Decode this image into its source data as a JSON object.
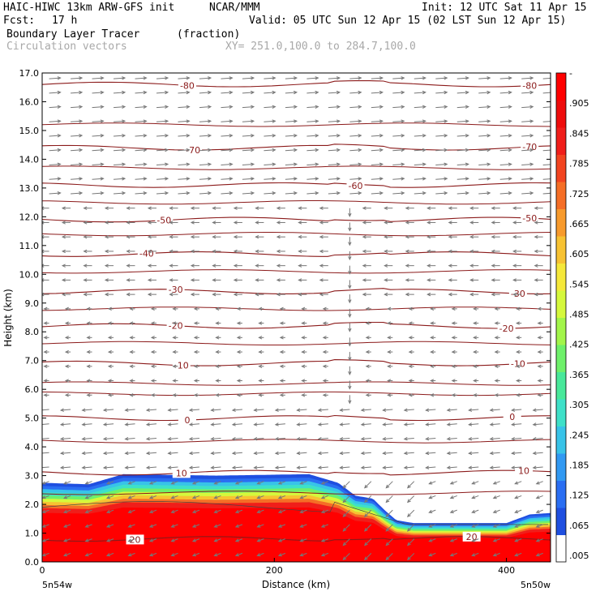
{
  "header": {
    "model": "HAIC-HIWC 13km ARW-GFS init",
    "org": "NCAR/MMM",
    "init": "Init: 12 UTC Sat 11 Apr 15",
    "fcst_label": "Fcst:",
    "fcst_value": "17 h",
    "valid": "Valid: 05 UTC Sun 12 Apr 15 (02 LST Sun 12 Apr 15)",
    "field": "Boundary Layer Tracer",
    "field_units": "(fraction)",
    "vectors": "Circulation vectors",
    "xy": "XY= 251.0,100.0 to 284.7,100.0"
  },
  "axes": {
    "xlabel": "Distance (km)",
    "ylabel": "Height (km)",
    "x_left_label": "5n54w",
    "x_right_label": "5n50w"
  },
  "colors": {
    "contour": "#8b1a1a",
    "vector": "#777777",
    "ramp": [
      "#ffffff",
      "#1f4fe0",
      "#2a6ef2",
      "#3199f2",
      "#38c3e8",
      "#3ee0c8",
      "#48e89a",
      "#6ef06a",
      "#a2f54a",
      "#d5f83c",
      "#f5e83a",
      "#f7c232",
      "#f79a2c",
      "#f56e26",
      "#f24420",
      "#f01e1a",
      "#ee0c0c",
      "#ff0000"
    ]
  },
  "chart_data": {
    "type": "contour-cross-section",
    "title": "Boundary Layer Tracer",
    "xlabel": "Distance (km)",
    "ylabel": "Height (km)",
    "xlim": [
      0,
      438
    ],
    "ylim": [
      0,
      17
    ],
    "xticks": [
      "0",
      "200",
      "400"
    ],
    "xtick_values": [
      0,
      200,
      400
    ],
    "yticks": [
      "0.0",
      "1.0",
      "2.0",
      "3.0",
      "4.0",
      "5.0",
      "6.0",
      "7.0",
      "8.0",
      "9.0",
      "10.0",
      "11.0",
      "12.0",
      "13.0",
      "14.0",
      "15.0",
      "16.0",
      "17.0"
    ],
    "colorbar_labels": [
      "-",
      ".905",
      ".845",
      ".785",
      ".725",
      ".665",
      ".605",
      ".545",
      ".485",
      ".425",
      ".365",
      ".305",
      ".245",
      ".185",
      ".125",
      ".065",
      ".005"
    ],
    "tracer_top_km": {
      "x": [
        0,
        40,
        70,
        150,
        230,
        255,
        270,
        285,
        295,
        305,
        320,
        400,
        420,
        438
      ],
      "h": [
        2.75,
        2.7,
        3.05,
        3.0,
        3.05,
        2.75,
        2.3,
        2.2,
        1.8,
        1.45,
        1.35,
        1.35,
        1.65,
        1.7
      ]
    },
    "temperature_contours": [
      {
        "label": "-80",
        "h": 16.6,
        "labels_at": [
          125,
          420
        ]
      },
      {
        "label": "-70",
        "h": 14.4,
        "labels_at": [
          130,
          420
        ]
      },
      {
        "label": "-60",
        "h": 13.1,
        "labels_at": [
          270
        ]
      },
      {
        "label": "-50",
        "h": 11.9,
        "labels_at": [
          105,
          420
        ]
      },
      {
        "label": "-40",
        "h": 10.7,
        "labels_at": [
          90
        ]
      },
      {
        "label": "-30",
        "h": 9.4,
        "labels_at": [
          115,
          410
        ]
      },
      {
        "label": "-20",
        "h": 8.2,
        "labels_at": [
          115,
          400
        ]
      },
      {
        "label": "-10",
        "h": 6.9,
        "labels_at": [
          120,
          410
        ]
      },
      {
        "label": "0",
        "h": 5.0,
        "labels_at": [
          125,
          405
        ]
      },
      {
        "label": "10",
        "h": 3.1,
        "labels_at": [
          120,
          415
        ]
      },
      {
        "label": "20",
        "h": 0.8,
        "labels_at": [
          80,
          370
        ]
      }
    ]
  }
}
